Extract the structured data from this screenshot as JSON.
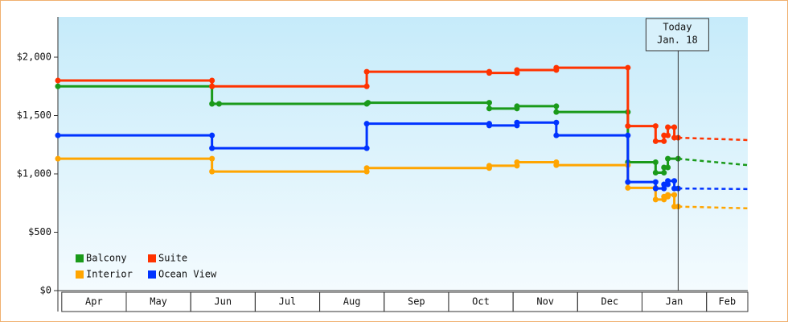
{
  "chart_data": {
    "type": "step-line",
    "ylim": [
      0,
      2345
    ],
    "yticks": [
      {
        "value": 0,
        "label": "$0"
      },
      {
        "value": 500,
        "label": "$500"
      },
      {
        "value": 1000,
        "label": "$1,000"
      },
      {
        "value": 1500,
        "label": "$1,500"
      },
      {
        "value": 2000,
        "label": "$2,000"
      }
    ],
    "xlim": [
      -0.06,
      10.64
    ],
    "xticks": [
      {
        "value": 0.5,
        "label": "Apr"
      },
      {
        "value": 1.5,
        "label": "May"
      },
      {
        "value": 2.5,
        "label": "Jun"
      },
      {
        "value": 3.5,
        "label": "Jul"
      },
      {
        "value": 4.5,
        "label": "Aug"
      },
      {
        "value": 5.5,
        "label": "Sep"
      },
      {
        "value": 6.5,
        "label": "Oct"
      },
      {
        "value": 7.5,
        "label": "Nov"
      },
      {
        "value": 8.5,
        "label": "Dec"
      },
      {
        "value": 9.5,
        "label": "Jan"
      },
      {
        "value": 10.5,
        "label": "Feb"
      }
    ],
    "today": {
      "x": 9.56,
      "label_lines": [
        "Today",
        "Jan. 18"
      ]
    },
    "series": [
      {
        "name": "Balcony",
        "color": "#1a9a1a",
        "x": [
          -0.06,
          2.33,
          2.33,
          2.44,
          4.73,
          4.75,
          6.63,
          6.63,
          7.06,
          7.06,
          7.67,
          7.67,
          8.78,
          8.78,
          9.21,
          9.21,
          9.34,
          9.34,
          9.4,
          9.4,
          9.56
        ],
        "values": [
          1750,
          1750,
          1600,
          1600,
          1600,
          1610,
          1610,
          1560,
          1560,
          1580,
          1580,
          1530,
          1530,
          1100,
          1100,
          1010,
          1010,
          1055,
          1055,
          1130,
          1130
        ],
        "forecast": {
          "x": [
            9.56,
            10.64
          ],
          "values": [
            1130,
            1075
          ]
        }
      },
      {
        "name": "Suite",
        "color": "#ff3300",
        "x": [
          -0.06,
          2.33,
          2.33,
          4.73,
          4.73,
          6.63,
          6.63,
          7.06,
          7.06,
          7.67,
          7.67,
          8.78,
          8.78,
          9.21,
          9.21,
          9.34,
          9.34,
          9.4,
          9.4,
          9.5,
          9.5,
          9.56
        ],
        "values": [
          1800,
          1800,
          1750,
          1750,
          1875,
          1875,
          1865,
          1865,
          1890,
          1890,
          1910,
          1910,
          1410,
          1410,
          1280,
          1280,
          1330,
          1330,
          1400,
          1400,
          1310,
          1310
        ],
        "forecast": {
          "x": [
            9.56,
            10.64
          ],
          "values": [
            1310,
            1290
          ]
        }
      },
      {
        "name": "Interior",
        "color": "#ffa500",
        "x": [
          -0.06,
          2.33,
          2.33,
          4.73,
          4.73,
          6.63,
          6.63,
          7.06,
          7.06,
          7.67,
          7.67,
          8.78,
          8.78,
          9.21,
          9.21,
          9.34,
          9.34,
          9.4,
          9.4,
          9.5,
          9.5,
          9.56
        ],
        "values": [
          1130,
          1130,
          1020,
          1020,
          1050,
          1050,
          1070,
          1070,
          1100,
          1100,
          1075,
          1075,
          880,
          880,
          780,
          780,
          805,
          805,
          820,
          820,
          720,
          720
        ],
        "forecast": {
          "x": [
            9.56,
            10.64
          ],
          "values": [
            720,
            705
          ]
        }
      },
      {
        "name": "Ocean View",
        "color": "#0033ff",
        "x": [
          -0.06,
          2.33,
          2.33,
          4.73,
          4.73,
          6.63,
          6.63,
          7.06,
          7.06,
          7.67,
          7.67,
          8.78,
          8.78,
          9.21,
          9.21,
          9.34,
          9.34,
          9.4,
          9.4,
          9.5,
          9.5,
          9.56
        ],
        "values": [
          1330,
          1330,
          1220,
          1220,
          1430,
          1430,
          1415,
          1415,
          1440,
          1440,
          1330,
          1330,
          930,
          930,
          875,
          875,
          910,
          910,
          940,
          940,
          875,
          875
        ],
        "forecast": {
          "x": [
            9.56,
            10.64
          ],
          "values": [
            875,
            870
          ]
        }
      }
    ]
  }
}
